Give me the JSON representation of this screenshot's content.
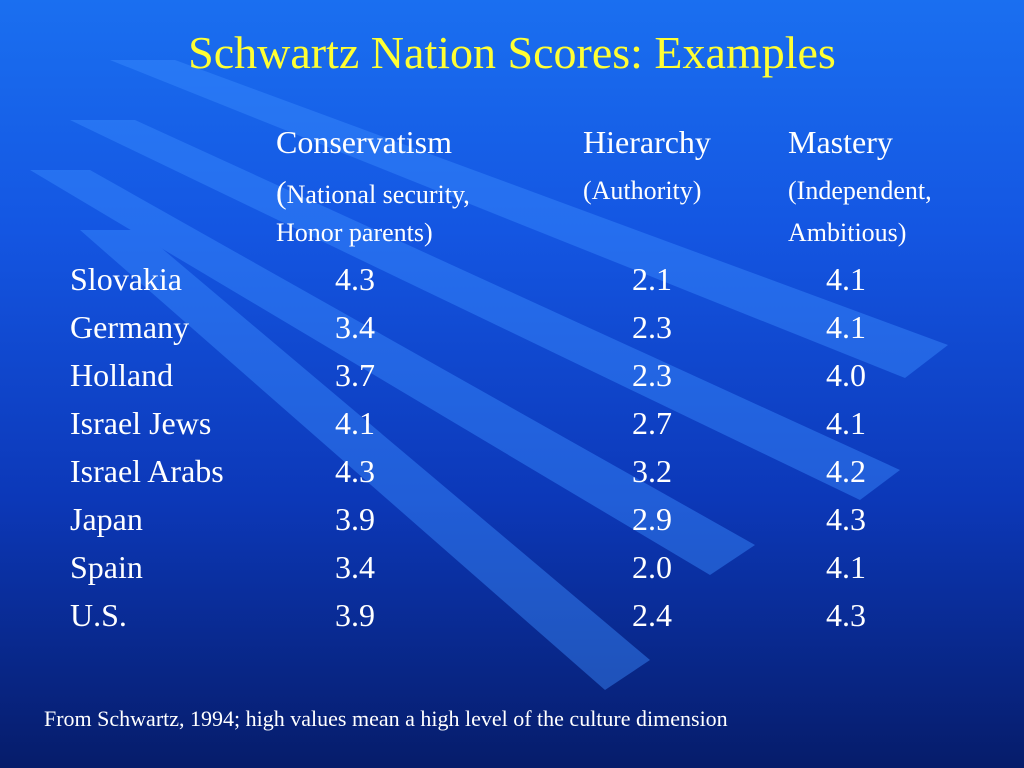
{
  "slide": {
    "title": "Schwartz Nation Scores: Examples",
    "footnote": "From Schwartz, 1994; high values mean a high level of the culture dimension"
  },
  "columns": [
    {
      "header": "Conservatism",
      "sub_open": "(",
      "sub_line1": "National security,",
      "sub_line2": "Honor parents)"
    },
    {
      "header": "Hierarchy",
      "sub_line1": "(Authority)",
      "sub_line2": ""
    },
    {
      "header": "Mastery",
      "sub_line1": "(Independent,",
      "sub_line2": "Ambitious)"
    }
  ],
  "rows": [
    {
      "country": "Slovakia",
      "values": [
        "4.3",
        "2.1",
        "4.1"
      ]
    },
    {
      "country": "Germany",
      "values": [
        "3.4",
        "2.3",
        "4.1"
      ]
    },
    {
      "country": "Holland",
      "values": [
        "3.7",
        "2.3",
        "4.0"
      ]
    },
    {
      "country": "Israel Jews",
      "values": [
        "4.1",
        "2.7",
        "4.1"
      ]
    },
    {
      "country": "Israel Arabs",
      "values": [
        "4.3",
        "3.2",
        "4.2"
      ]
    },
    {
      "country": "Japan",
      "values": [
        "3.9",
        "2.9",
        "4.3"
      ]
    },
    {
      "country": "Spain",
      "values": [
        "3.4",
        "2.0",
        "4.1"
      ]
    },
    {
      "country": "U.S.",
      "values": [
        "3.9",
        "2.4",
        "4.3"
      ]
    }
  ],
  "colors": {
    "title": "#ffff33",
    "text": "#ffffff",
    "background_top": "#1a6ff0",
    "background_bottom": "#061c6a"
  }
}
